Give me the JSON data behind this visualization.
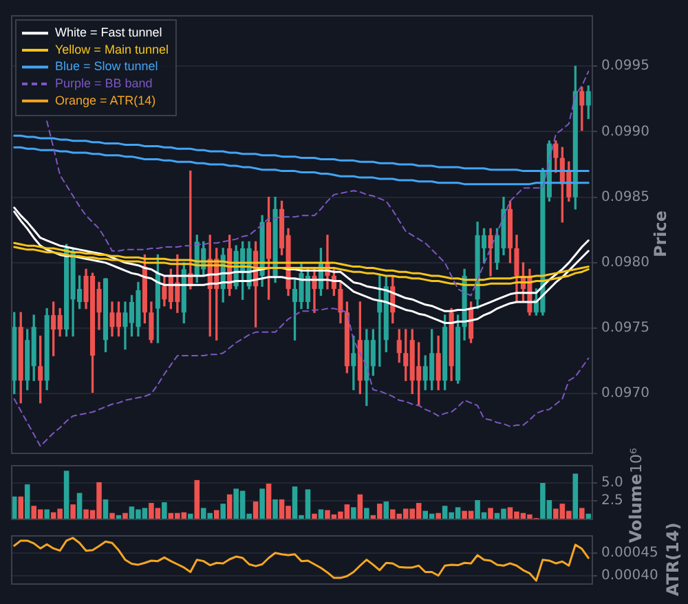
{
  "chart_data": [
    {
      "type": "candlestick",
      "ylabel": "Price",
      "grid": "y",
      "legend": "top left",
      "tick_labels": "y",
      "ylim": [
        0.09655,
        0.09989
      ],
      "yticks": [
        {
          "value": 0.097,
          "label": "0.0970"
        },
        {
          "value": 0.0975,
          "label": "0.0975"
        },
        {
          "value": 0.098,
          "label": "0.0980"
        },
        {
          "value": 0.0985,
          "label": "0.0985"
        },
        {
          "value": 0.099,
          "label": "0.0990"
        },
        {
          "value": 0.0995,
          "label": "0.0995"
        }
      ],
      "categories": [
        null,
        null,
        null,
        null,
        null,
        null,
        null,
        null,
        null,
        null,
        null,
        null,
        null,
        null,
        null,
        null,
        null,
        null,
        null,
        null,
        null,
        null,
        null,
        null,
        null,
        null,
        null,
        null,
        null,
        null,
        null,
        null,
        null,
        null,
        null,
        null,
        null,
        null,
        null,
        null,
        null,
        null,
        null,
        null,
        null,
        null,
        null,
        null,
        null,
        null,
        null,
        null,
        null,
        null,
        null,
        null,
        null,
        null,
        null,
        null,
        null,
        null,
        null,
        null,
        null,
        null,
        null,
        null,
        null,
        null,
        null,
        null,
        null,
        null,
        null,
        null,
        null,
        null,
        null,
        null,
        null,
        null,
        null,
        null,
        null,
        null,
        null,
        null,
        null
      ],
      "ohlc": [
        [
          0.0971,
          0.09762,
          0.097,
          0.09751
        ],
        [
          0.09751,
          0.09762,
          0.09693,
          0.0971
        ],
        [
          0.0971,
          0.09749,
          0.09703,
          0.09741
        ],
        [
          0.09721,
          0.0976,
          0.0971,
          0.09751
        ],
        [
          0.09721,
          0.09744,
          0.09693,
          0.0971
        ],
        [
          0.0971,
          0.09765,
          0.09703,
          0.0976
        ],
        [
          0.0976,
          0.0977,
          0.09729,
          0.09749
        ],
        [
          0.0976,
          0.09765,
          0.09744,
          0.09749
        ],
        [
          0.09749,
          0.09814,
          0.09744,
          0.09811
        ],
        [
          0.09772,
          0.09811,
          0.09744,
          0.09809
        ],
        [
          0.0977,
          0.0979,
          0.09765,
          0.0978
        ],
        [
          0.0979,
          0.09795,
          0.09765,
          0.0977
        ],
        [
          0.0979,
          0.09792,
          0.09701,
          0.09729
        ],
        [
          0.0978,
          0.09785,
          0.09749,
          0.09762
        ],
        [
          0.09741,
          0.09788,
          0.09732,
          0.09788
        ],
        [
          0.09762,
          0.0977,
          0.09744,
          0.09751
        ],
        [
          0.09762,
          0.0977,
          0.09744,
          0.09751
        ],
        [
          0.09751,
          0.0977,
          0.09734,
          0.09762
        ],
        [
          0.09754,
          0.09775,
          0.09744,
          0.0977
        ],
        [
          0.09751,
          0.09785,
          0.09744,
          0.09779
        ],
        [
          0.09797,
          0.09806,
          0.09754,
          0.09762
        ],
        [
          0.09762,
          0.0977,
          0.09739,
          0.09741
        ],
        [
          0.09765,
          0.09806,
          0.09739,
          0.09792
        ],
        [
          0.09782,
          0.0979,
          0.09767,
          0.09772
        ],
        [
          0.0979,
          0.09795,
          0.09765,
          0.0977
        ],
        [
          0.09785,
          0.09806,
          0.09762,
          0.0977
        ],
        [
          0.09762,
          0.098,
          0.09754,
          0.09795
        ],
        [
          0.09792,
          0.0987,
          0.0978,
          0.09782
        ],
        [
          0.0979,
          0.09821,
          0.09785,
          0.09816
        ],
        [
          0.09795,
          0.09816,
          0.0979,
          0.09811
        ],
        [
          0.09803,
          0.09821,
          0.09744,
          0.0978
        ],
        [
          0.09803,
          0.09811,
          0.09741,
          0.0978
        ],
        [
          0.0978,
          0.09811,
          0.0977,
          0.09806
        ],
        [
          0.09811,
          0.09821,
          0.09775,
          0.0978
        ],
        [
          0.09782,
          0.09813,
          0.0978,
          0.09809
        ],
        [
          0.09792,
          0.09816,
          0.09772,
          0.09811
        ],
        [
          0.09782,
          0.09816,
          0.0978,
          0.09811
        ],
        [
          0.09809,
          0.09816,
          0.09751,
          0.09782
        ],
        [
          0.0979,
          0.09836,
          0.09782,
          0.09831
        ],
        [
          0.09831,
          0.0985,
          0.09772,
          0.09803
        ],
        [
          0.0979,
          0.0985,
          0.09785,
          0.09841
        ],
        [
          0.09841,
          0.09847,
          0.09806,
          0.09811
        ],
        [
          0.09821,
          0.09826,
          0.09775,
          0.0978
        ],
        [
          0.0977,
          0.09788,
          0.09741,
          0.0978
        ],
        [
          0.0977,
          0.098,
          0.09765,
          0.09792
        ],
        [
          0.0977,
          0.09795,
          0.09765,
          0.0979
        ],
        [
          0.0979,
          0.09795,
          0.09762,
          0.0978
        ],
        [
          0.0978,
          0.09811,
          0.09775,
          0.098
        ],
        [
          0.098,
          0.09821,
          0.0978,
          0.0979
        ],
        [
          0.0979,
          0.09795,
          0.09775,
          0.0978
        ],
        [
          0.0978,
          0.09785,
          0.09754,
          0.09762
        ],
        [
          0.09762,
          0.0977,
          0.09716,
          0.09721
        ],
        [
          0.09721,
          0.09744,
          0.09703,
          0.09731
        ],
        [
          0.09741,
          0.0977,
          0.097,
          0.0971
        ],
        [
          0.0971,
          0.09749,
          0.09691,
          0.09741
        ],
        [
          0.09721,
          0.09749,
          0.09714,
          0.09741
        ],
        [
          0.09762,
          0.0979,
          0.09721,
          0.09772
        ],
        [
          0.09741,
          0.0979,
          0.09732,
          0.09782
        ],
        [
          0.09782,
          0.0979,
          0.09754,
          0.09762
        ],
        [
          0.09741,
          0.09749,
          0.09724,
          0.09731
        ],
        [
          0.09731,
          0.09749,
          0.0971,
          0.09721
        ],
        [
          0.09741,
          0.09749,
          0.097,
          0.0971
        ],
        [
          0.09721,
          0.09739,
          0.09691,
          0.0971
        ],
        [
          0.0971,
          0.09729,
          0.09703,
          0.09721
        ],
        [
          0.0971,
          0.09749,
          0.09703,
          0.09731
        ],
        [
          0.09731,
          0.09744,
          0.09703,
          0.0971
        ],
        [
          0.0971,
          0.0976,
          0.09703,
          0.09751
        ],
        [
          0.09762,
          0.09765,
          0.0971,
          0.09721
        ],
        [
          0.0971,
          0.0976,
          0.09708,
          0.09751
        ],
        [
          0.09751,
          0.09795,
          0.09741,
          0.0979
        ],
        [
          0.09765,
          0.0977,
          0.09739,
          0.09742
        ],
        [
          0.09772,
          0.09831,
          0.09765,
          0.09821
        ],
        [
          0.09811,
          0.09826,
          0.098,
          0.09821
        ],
        [
          0.09821,
          0.09826,
          0.0979,
          0.09811
        ],
        [
          0.098,
          0.09826,
          0.09795,
          0.09821
        ],
        [
          0.09811,
          0.0985,
          0.09806,
          0.09841
        ],
        [
          0.09841,
          0.09847,
          0.098,
          0.09811
        ],
        [
          0.09811,
          0.09821,
          0.0977,
          0.0979
        ],
        [
          0.0979,
          0.098,
          0.0977,
          0.0978
        ],
        [
          0.0979,
          0.09795,
          0.0976,
          0.09762
        ],
        [
          0.09762,
          0.0978,
          0.0976,
          0.09772
        ],
        [
          0.09762,
          0.09872,
          0.0976,
          0.0987
        ],
        [
          0.0985,
          0.09893,
          0.09847,
          0.09891
        ],
        [
          0.09891,
          0.09893,
          0.09869,
          0.0988
        ],
        [
          0.0988,
          0.09888,
          0.09831,
          0.0986
        ],
        [
          0.0987,
          0.09877,
          0.09847,
          0.0985
        ],
        [
          0.0985,
          0.0995,
          0.09841,
          0.09931
        ],
        [
          0.09931,
          0.09934,
          0.09901,
          0.0992
        ],
        [
          0.0992,
          0.09935,
          0.0991,
          0.09931
        ]
      ],
      "colors": [
        "#26a69a",
        "#ef5350",
        "#26a69a",
        "#26a69a",
        "#ef5350",
        "#26a69a",
        "#ef5350",
        "#ef5350",
        "#26a69a",
        "#26a69a",
        "#26a69a",
        "#ef5350",
        "#ef5350",
        "#ef5350",
        "#26a69a",
        "#ef5350",
        "#ef5350",
        "#26a69a",
        "#26a69a",
        "#26a69a",
        "#ef5350",
        "#ef5350",
        "#26a69a",
        "#ef5350",
        "#ef5350",
        "#ef5350",
        "#26a69a",
        "#ef5350",
        "#26a69a",
        "#26a69a",
        "#ef5350",
        "#ef5350",
        "#26a69a",
        "#ef5350",
        "#26a69a",
        "#26a69a",
        "#26a69a",
        "#ef5350",
        "#26a69a",
        "#ef5350",
        "#26a69a",
        "#ef5350",
        "#ef5350",
        "#26a69a",
        "#26a69a",
        "#26a69a",
        "#ef5350",
        "#26a69a",
        "#ef5350",
        "#ef5350",
        "#ef5350",
        "#ef5350",
        "#26a69a",
        "#ef5350",
        "#26a69a",
        "#26a69a",
        "#26a69a",
        "#26a69a",
        "#ef5350",
        "#ef5350",
        "#ef5350",
        "#ef5350",
        "#ef5350",
        "#26a69a",
        "#26a69a",
        "#ef5350",
        "#26a69a",
        "#ef5350",
        "#26a69a",
        "#26a69a",
        "#ef5350",
        "#26a69a",
        "#26a69a",
        "#ef5350",
        "#26a69a",
        "#26a69a",
        "#ef5350",
        "#ef5350",
        "#ef5350",
        "#ef5350",
        "#26a69a",
        "#26a69a",
        "#26a69a",
        "#ef5350",
        "#ef5350",
        "#ef5350",
        "#26a69a",
        "#ef5350",
        "#26a69a"
      ],
      "series": [
        {
          "type": "line",
          "name": "White = Fast tunnel",
          "color": "#ffffff",
          "values": [
            0.09842,
            0.09836,
            0.09831,
            0.09825,
            0.09819,
            0.09817,
            0.09815,
            0.09813,
            0.09812,
            0.09811,
            0.0981,
            0.09809,
            0.09808,
            0.09807,
            0.09806,
            0.09804,
            0.09802,
            0.098,
            0.09799,
            0.09798,
            0.09796,
            0.09795,
            0.09792,
            0.0979,
            0.0979,
            0.0979,
            0.0979,
            0.0979,
            0.0979,
            0.0979,
            0.09791,
            0.09791,
            0.09792,
            0.09792,
            0.09793,
            0.09793,
            0.09793,
            0.09794,
            0.09795,
            0.09796,
            0.09796,
            0.09796,
            0.09795,
            0.09795,
            0.09794,
            0.09794,
            0.09794,
            0.09794,
            0.09794,
            0.09793,
            0.09793,
            0.09789,
            0.09785,
            0.09784,
            0.09782,
            0.09781,
            0.0978,
            0.09779,
            0.09777,
            0.09775,
            0.09773,
            0.09772,
            0.0977,
            0.09768,
            0.09767,
            0.09765,
            0.09763,
            0.09763,
            0.09764,
            0.09764,
            0.09765,
            0.09766,
            0.09768,
            0.0977,
            0.09772,
            0.09774,
            0.09776,
            0.09777,
            0.09777,
            0.09777,
            0.09777,
            0.09782,
            0.09787,
            0.09791,
            0.09795,
            0.098,
            0.09806,
            0.09812,
            0.09817
          ]
        },
        {
          "type": "line",
          "color": "#ffffff",
          "values": [
            0.09839,
            0.09832,
            0.09826,
            0.09819,
            0.09813,
            0.0981,
            0.09808,
            0.09806,
            0.09805,
            0.09805,
            0.09804,
            0.09803,
            0.09802,
            0.09801,
            0.098,
            0.09798,
            0.09796,
            0.09794,
            0.09792,
            0.09791,
            0.09789,
            0.09788,
            0.09785,
            0.09783,
            0.09783,
            0.09783,
            0.09783,
            0.09783,
            0.09783,
            0.09783,
            0.09784,
            0.09784,
            0.09785,
            0.09785,
            0.09786,
            0.09786,
            0.09786,
            0.09787,
            0.09788,
            0.09789,
            0.09789,
            0.09789,
            0.09788,
            0.09788,
            0.09787,
            0.09787,
            0.09787,
            0.09787,
            0.09787,
            0.09786,
            0.09786,
            0.09782,
            0.09778,
            0.09776,
            0.09774,
            0.09772,
            0.09771,
            0.0977,
            0.09768,
            0.09766,
            0.09764,
            0.09763,
            0.09761,
            0.0976,
            0.09758,
            0.09756,
            0.09754,
            0.09754,
            0.09755,
            0.09755,
            0.09756,
            0.09757,
            0.0976,
            0.09762,
            0.09765,
            0.09767,
            0.09769,
            0.0977,
            0.0977,
            0.0977,
            0.0977,
            0.09775,
            0.0978,
            0.09785,
            0.09789,
            0.09794,
            0.09799,
            0.09804,
            0.09809
          ]
        },
        {
          "type": "line",
          "name": "Yellow = Main tunnel",
          "color": "#f5c518",
          "values": [
            0.09815,
            0.09814,
            0.09813,
            0.09813,
            0.09812,
            0.09811,
            0.09811,
            0.0981,
            0.09809,
            0.09808,
            0.09808,
            0.09807,
            0.09807,
            0.09806,
            0.09806,
            0.09805,
            0.09805,
            0.09804,
            0.09804,
            0.09804,
            0.09803,
            0.09803,
            0.09803,
            0.09803,
            0.09802,
            0.09802,
            0.09802,
            0.09802,
            0.09801,
            0.09801,
            0.09801,
            0.09801,
            0.09801,
            0.098,
            0.098,
            0.098,
            0.098,
            0.098,
            0.098,
            0.098,
            0.098,
            0.098,
            0.098,
            0.098,
            0.098,
            0.098,
            0.098,
            0.098,
            0.098,
            0.098,
            0.09799,
            0.09798,
            0.09797,
            0.09797,
            0.09796,
            0.09796,
            0.09795,
            0.09794,
            0.09794,
            0.09793,
            0.09793,
            0.09792,
            0.09792,
            0.09791,
            0.0979,
            0.0979,
            0.09789,
            0.09788,
            0.09788,
            0.09787,
            0.09787,
            0.09787,
            0.09787,
            0.09788,
            0.09788,
            0.09788,
            0.09788,
            0.09789,
            0.09789,
            0.09789,
            0.0979,
            0.0979,
            0.09791,
            0.09792,
            0.09793,
            0.09794,
            0.09795,
            0.09796,
            0.09797
          ]
        },
        {
          "type": "line",
          "color": "#f5c518",
          "values": [
            0.09812,
            0.09811,
            0.0981,
            0.0981,
            0.09809,
            0.09808,
            0.09808,
            0.09807,
            0.09806,
            0.09805,
            0.09805,
            0.09804,
            0.09804,
            0.09803,
            0.09803,
            0.09802,
            0.09802,
            0.09801,
            0.09801,
            0.09801,
            0.098,
            0.098,
            0.098,
            0.098,
            0.09799,
            0.09799,
            0.09799,
            0.09799,
            0.09798,
            0.09798,
            0.09798,
            0.09798,
            0.09798,
            0.09797,
            0.09797,
            0.09797,
            0.09797,
            0.09796,
            0.09796,
            0.09796,
            0.09796,
            0.09796,
            0.09796,
            0.09796,
            0.09796,
            0.09796,
            0.09796,
            0.09796,
            0.09796,
            0.09796,
            0.09795,
            0.09794,
            0.09793,
            0.09793,
            0.09792,
            0.09792,
            0.09791,
            0.0979,
            0.0979,
            0.09789,
            0.09789,
            0.09788,
            0.09788,
            0.09787,
            0.09786,
            0.09786,
            0.09785,
            0.09784,
            0.09784,
            0.09783,
            0.09783,
            0.09783,
            0.09783,
            0.09784,
            0.09784,
            0.09784,
            0.09784,
            0.09785,
            0.09785,
            0.09785,
            0.09786,
            0.09786,
            0.09787,
            0.09788,
            0.09789,
            0.0979,
            0.09792,
            0.09793,
            0.09795
          ]
        },
        {
          "type": "line",
          "name": "Blue = Slow tunnel",
          "color": "#42a5f5",
          "values": [
            0.09897,
            0.09897,
            0.09896,
            0.09896,
            0.09895,
            0.09895,
            0.09895,
            0.09894,
            0.09894,
            0.09893,
            0.09893,
            0.09893,
            0.09892,
            0.09892,
            0.09891,
            0.09891,
            0.09891,
            0.0989,
            0.0989,
            0.0989,
            0.09889,
            0.09889,
            0.09889,
            0.09888,
            0.09888,
            0.09887,
            0.09887,
            0.09887,
            0.09886,
            0.09886,
            0.09885,
            0.09885,
            0.09885,
            0.09884,
            0.09884,
            0.09883,
            0.09883,
            0.09883,
            0.09882,
            0.09882,
            0.09882,
            0.09881,
            0.09881,
            0.09881,
            0.0988,
            0.0988,
            0.0988,
            0.09879,
            0.09879,
            0.09879,
            0.09878,
            0.09878,
            0.09878,
            0.09877,
            0.09877,
            0.09877,
            0.09876,
            0.09876,
            0.09876,
            0.09875,
            0.09875,
            0.09875,
            0.09874,
            0.09874,
            0.09874,
            0.09873,
            0.09873,
            0.09873,
            0.09873,
            0.09872,
            0.09872,
            0.09872,
            0.09872,
            0.09871,
            0.09871,
            0.09871,
            0.09871,
            0.09871,
            0.0987,
            0.0987,
            0.0987,
            0.0987,
            0.0987,
            0.0987,
            0.0987,
            0.0987,
            0.0987,
            0.0987,
            0.0987
          ]
        },
        {
          "type": "line",
          "color": "#42a5f5",
          "values": [
            0.09888,
            0.09888,
            0.09887,
            0.09887,
            0.09886,
            0.09886,
            0.09886,
            0.09885,
            0.09885,
            0.09884,
            0.09884,
            0.09884,
            0.09883,
            0.09883,
            0.09882,
            0.09882,
            0.09882,
            0.09881,
            0.09881,
            0.0988,
            0.09879,
            0.09879,
            0.09879,
            0.09878,
            0.09878,
            0.09877,
            0.09877,
            0.09877,
            0.09876,
            0.09876,
            0.09875,
            0.09875,
            0.09875,
            0.09874,
            0.09874,
            0.09873,
            0.09873,
            0.09872,
            0.09871,
            0.09871,
            0.09871,
            0.0987,
            0.0987,
            0.0987,
            0.09869,
            0.09869,
            0.09869,
            0.09868,
            0.09868,
            0.09867,
            0.09866,
            0.09866,
            0.09866,
            0.09865,
            0.09865,
            0.09865,
            0.09864,
            0.09864,
            0.09864,
            0.09863,
            0.09863,
            0.09863,
            0.09862,
            0.09862,
            0.09862,
            0.09861,
            0.09861,
            0.09861,
            0.09861,
            0.0986,
            0.0986,
            0.0986,
            0.0986,
            0.0986,
            0.0986,
            0.0986,
            0.0986,
            0.0986,
            0.0986,
            0.0986,
            0.09861,
            0.09861,
            0.09861,
            0.09861,
            0.09861,
            0.09861,
            0.09861,
            0.09861,
            0.09861
          ]
        },
        {
          "type": "line",
          "name": "Purple = BB band",
          "color": "#7e57c2",
          "line_style": "dashed",
          "values": [
            null,
            null,
            null,
            null,
            null,
            0.09908,
            0.09888,
            0.09867,
            0.09859,
            0.09851,
            0.09843,
            0.09836,
            0.09831,
            0.09826,
            0.09818,
            0.09809,
            0.09809,
            0.0981,
            0.0981,
            0.0981,
            0.0981,
            0.09811,
            0.09811,
            0.09812,
            0.09812,
            0.09812,
            0.09813,
            0.09813,
            0.09814,
            0.09814,
            0.09815,
            0.09815,
            0.09816,
            0.09817,
            0.09818,
            0.0982,
            0.09821,
            0.09825,
            0.09829,
            0.09834,
            0.09834,
            0.09835,
            0.09835,
            0.09835,
            0.09836,
            0.09836,
            0.09836,
            0.09841,
            0.09847,
            0.09852,
            0.09853,
            0.09854,
            0.09855,
            0.09854,
            0.09852,
            0.09851,
            0.09849,
            0.09847,
            0.0984,
            0.09832,
            0.09824,
            0.09821,
            0.09818,
            0.09815,
            0.0981,
            0.09805,
            0.098,
            0.0979,
            0.0978,
            0.09777,
            0.09775,
            0.09787,
            0.09799,
            0.09811,
            0.09823,
            0.09835,
            0.09847,
            0.09852,
            0.09857,
            0.09857,
            0.09857,
            0.09857,
            0.09878,
            0.09898,
            0.09902,
            0.09906,
            0.09928,
            0.09935,
            0.09946
          ]
        },
        {
          "type": "line",
          "color": "#7e57c2",
          "line_style": "dashed",
          "values": [
            0.09696,
            0.09687,
            0.09678,
            0.09669,
            0.0966,
            0.09665,
            0.0967,
            0.09674,
            0.09679,
            0.09683,
            0.09684,
            0.09685,
            0.09686,
            0.09688,
            0.0969,
            0.09692,
            0.09693,
            0.09695,
            0.09696,
            0.09697,
            0.09698,
            0.097,
            0.09707,
            0.09715,
            0.09722,
            0.09729,
            0.09729,
            0.09729,
            0.09729,
            0.09729,
            0.0973,
            0.0973,
            0.09731,
            0.09735,
            0.09739,
            0.09742,
            0.09745,
            0.09747,
            0.09747,
            0.09747,
            0.09747,
            0.09752,
            0.09757,
            0.0976,
            0.09763,
            0.09763,
            0.09764,
            0.09764,
            0.09765,
            0.09765,
            0.09764,
            0.09762,
            0.09741,
            0.09731,
            0.09721,
            0.09703,
            0.09702,
            0.097,
            0.09698,
            0.09695,
            0.09694,
            0.09692,
            0.09691,
            0.09688,
            0.09686,
            0.09683,
            0.09685,
            0.09686,
            0.0969,
            0.09695,
            0.09693,
            0.09691,
            0.09681,
            0.0968,
            0.09678,
            0.09677,
            0.09675,
            0.09676,
            0.09676,
            0.0968,
            0.09685,
            0.09687,
            0.09688,
            0.09692,
            0.09696,
            0.0971,
            0.09713,
            0.0972,
            0.09727
          ]
        }
      ]
    },
    {
      "type": "bar",
      "ylabel": "Volume",
      "annotations": [
        "10⁶"
      ],
      "grid": "y",
      "tick_labels": "y",
      "ylim": [
        0,
        7.5
      ],
      "yticks": [
        {
          "value": 2.5,
          "label": "2.5"
        },
        {
          "value": 5,
          "label": "5.0"
        }
      ],
      "categories": [
        null,
        null,
        null,
        null,
        null,
        null,
        null,
        null,
        null,
        null,
        null,
        null,
        null,
        null,
        null,
        null,
        null,
        null,
        null,
        null,
        null,
        null,
        null,
        null,
        null,
        null,
        null,
        null,
        null,
        null,
        null,
        null,
        null,
        null,
        null,
        null,
        null,
        null,
        null,
        null,
        null,
        null,
        null,
        null,
        null,
        null,
        null,
        null,
        null,
        null,
        null,
        null,
        null,
        null,
        null,
        null,
        null,
        null,
        null,
        null,
        null,
        null,
        null,
        null,
        null,
        null,
        null,
        null,
        null,
        null,
        null,
        null,
        null,
        null,
        null,
        null,
        null,
        null,
        null,
        null,
        null,
        null,
        null,
        null,
        null,
        null,
        null,
        null,
        null
      ],
      "values": [
        3.1,
        3.1,
        4.8,
        1.8,
        1.3,
        1.3,
        0.9,
        1.4,
        6.7,
        2.0,
        3.6,
        1.3,
        1.2,
        5.1,
        2.7,
        0.8,
        0.5,
        0.8,
        1.7,
        1.3,
        1.5,
        2.2,
        1.5,
        2.3,
        0.8,
        0.8,
        0.9,
        0.7,
        5.4,
        1.5,
        0.8,
        1.2,
        2.1,
        3.4,
        4.2,
        3.9,
        0.7,
        2.4,
        4.2,
        4.9,
        2.7,
        2.7,
        1.8,
        4.5,
        0.5,
        4.1,
        0.7,
        1.3,
        1.2,
        0.6,
        1.0,
        2.0,
        1.6,
        3.4,
        1.5,
        0.5,
        2.1,
        2.4,
        1.3,
        0.7,
        1.4,
        1.4,
        2.2,
        1.1,
        0.7,
        0.8,
        1.8,
        0.9,
        1.6,
        1.1,
        1.1,
        2.6,
        0.9,
        1.5,
        0.8,
        1.4,
        1.6,
        1.0,
        0.8,
        0.6,
        0.1,
        5.0,
        2.6,
        1.4,
        2.1,
        1.1,
        6.3,
        1.5,
        0.7
      ],
      "colors": [
        "#26a69a",
        "#ef5350",
        "#26a69a",
        "#ef5350",
        "#ef5350",
        "#26a69a",
        "#ef5350",
        "#ef5350",
        "#26a69a",
        "#ef5350",
        "#26a69a",
        "#ef5350",
        "#ef5350",
        "#ef5350",
        "#26a69a",
        "#ef5350",
        "#26a69a",
        "#ef5350",
        "#26a69a",
        "#26a69a",
        "#26a69a",
        "#ef5350",
        "#ef5350",
        "#26a69a",
        "#ef5350",
        "#ef5350",
        "#ef5350",
        "#26a69a",
        "#ef5350",
        "#26a69a",
        "#26a69a",
        "#ef5350",
        "#26a69a",
        "#ef5350",
        "#26a69a",
        "#26a69a",
        "#26a69a",
        "#ef5350",
        "#26a69a",
        "#ef5350",
        "#26a69a",
        "#ef5350",
        "#ef5350",
        "#26a69a",
        "#26a69a",
        "#26a69a",
        "#ef5350",
        "#26a69a",
        "#ef5350",
        "#ef5350",
        "#ef5350",
        "#ef5350",
        "#26a69a",
        "#ef5350",
        "#26a69a",
        "#ef5350",
        "#ef5350",
        "#26a69a",
        "#ef5350",
        "#ef5350",
        "#ef5350",
        "#ef5350",
        "#ef5350",
        "#26a69a",
        "#26a69a",
        "#ef5350",
        "#26a69a",
        "#26a69a",
        "#26a69a",
        "#ef5350",
        "#ef5350",
        "#26a69a",
        "#26a69a",
        "#ef5350",
        "#26a69a",
        "#26a69a",
        "#ef5350",
        "#ef5350",
        "#ef5350",
        "#ef5350",
        "#ef5350",
        "#26a69a",
        "#26a69a",
        "#ef5350",
        "#ef5350",
        "#ef5350",
        "#26a69a",
        "#ef5350",
        "#26a69a"
      ]
    },
    {
      "type": "line",
      "ylabel": "ATR(14)",
      "grid": "y",
      "tick_labels": "y",
      "ylim": [
        0.000383,
        0.000489
      ],
      "yticks": [
        {
          "value": 0.0004,
          "label": "0.00040"
        },
        {
          "value": 0.00045,
          "label": "0.00045"
        }
      ],
      "categories": [
        null,
        null,
        null,
        null,
        null,
        null,
        null,
        null,
        null,
        null,
        null,
        null,
        null,
        null,
        null,
        null,
        null,
        null,
        null,
        null,
        null,
        null,
        null,
        null,
        null,
        null,
        null,
        null,
        null,
        null,
        null,
        null,
        null,
        null,
        null,
        null,
        null,
        null,
        null,
        null,
        null,
        null,
        null,
        null,
        null,
        null,
        null,
        null,
        null,
        null,
        null,
        null,
        null,
        null,
        null,
        null,
        null,
        null,
        null,
        null,
        null,
        null,
        null,
        null,
        null,
        null,
        null,
        null,
        null,
        null,
        null,
        null,
        null,
        null,
        null,
        null,
        null,
        null,
        null,
        null,
        null,
        null,
        null,
        null,
        null,
        null,
        null,
        null,
        null
      ],
      "series": [
        {
          "name": "Orange = ATR(14)",
          "color": "#f5a623",
          "values": [
            0.000466,
            0.000477,
            0.000477,
            0.000471,
            0.00046,
            0.000469,
            0.00046,
            0.000455,
            0.000477,
            0.000483,
            0.000472,
            0.000455,
            0.000456,
            0.000465,
            0.000475,
            0.000472,
            0.000456,
            0.000435,
            0.000426,
            0.000424,
            0.000428,
            0.000433,
            0.000432,
            0.00044,
            0.000432,
            0.000425,
            0.000418,
            0.000408,
            0.000435,
            0.000432,
            0.000423,
            0.000428,
            0.000427,
            0.000436,
            0.000442,
            0.000439,
            0.000425,
            0.000421,
            0.000425,
            0.000439,
            0.00045,
            0.000447,
            0.000445,
            0.000447,
            0.000432,
            0.000433,
            0.000425,
            0.000417,
            0.000407,
            0.000395,
            0.000395,
            0.000399,
            0.000408,
            0.000422,
            0.000435,
            0.000424,
            0.000412,
            0.000428,
            0.000427,
            0.000419,
            0.000418,
            0.000418,
            0.000422,
            0.000408,
            0.000408,
            0.0004,
            0.000422,
            0.000424,
            0.000423,
            0.000428,
            0.000427,
            0.000445,
            0.000435,
            0.000433,
            0.000424,
            0.000422,
            0.000427,
            0.000422,
            0.000412,
            0.000405,
            0.000389,
            0.000435,
            0.000433,
            0.000427,
            0.000431,
            0.000422,
            0.000468,
            0.000459,
            0.000439
          ]
        }
      ]
    }
  ]
}
